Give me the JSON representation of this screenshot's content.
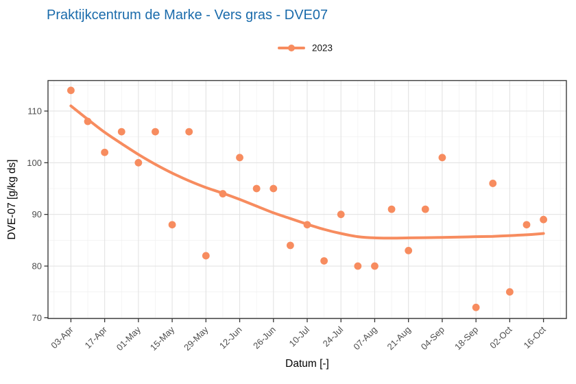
{
  "title": {
    "text": "Praktijkcentrum de Marke - Vers gras - DVE07",
    "color": "#1A6BAB"
  },
  "legend": {
    "label": "2023",
    "color": "#F78C5F"
  },
  "axes": {
    "x_label": "Datum [-]",
    "y_label": "DVE-07 [g/kg ds]",
    "tick_label_color": "#4d4d4d",
    "panel_border_color": "#3b3b3b",
    "major_grid_color": "#e3e3e3",
    "minor_grid_color": "#f1f1f1"
  },
  "chart_data": {
    "type": "scatter",
    "title": "Praktijkcentrum de Marke - Vers gras - DVE07",
    "xlabel": "Datum [-]",
    "ylabel": "DVE-07 [g/kg ds]",
    "legend_entries": [
      "2023"
    ],
    "legend_position": "top-center",
    "grid": true,
    "point_color": "#F78C5F",
    "line_color": "#F78C5F",
    "x_tick_labels": [
      "03-Apr",
      "17-Apr",
      "01-May",
      "15-May",
      "29-May",
      "12-Jun",
      "26-Jun",
      "10-Jul",
      "24-Jul",
      "07-Aug",
      "21-Aug",
      "04-Sep",
      "18-Sep",
      "02-Oct",
      "16-Oct"
    ],
    "x_tick_days": [
      0,
      14,
      28,
      42,
      56,
      70,
      84,
      98,
      112,
      126,
      140,
      154,
      168,
      182,
      196
    ],
    "y_ticks": [
      70,
      80,
      90,
      100,
      110
    ],
    "y_minor_ticks": [
      75,
      85,
      95,
      105,
      115
    ],
    "x_domain_days": [
      -9.5,
      205.5
    ],
    "y_axis_range": [
      69.85,
      115.9
    ],
    "series": [
      {
        "name": "2023",
        "type": "points",
        "color": "#F78C5F",
        "points": [
          {
            "date": "03-Apr",
            "day": 0,
            "value": 114
          },
          {
            "date": "10-Apr",
            "day": 7,
            "value": 108
          },
          {
            "date": "17-Apr",
            "day": 14,
            "value": 102
          },
          {
            "date": "24-Apr",
            "day": 21,
            "value": 106
          },
          {
            "date": "01-May",
            "day": 28,
            "value": 100
          },
          {
            "date": "08-May",
            "day": 35,
            "value": 106
          },
          {
            "date": "15-May",
            "day": 42,
            "value": 88
          },
          {
            "date": "22-May",
            "day": 49,
            "value": 106
          },
          {
            "date": "29-May",
            "day": 56,
            "value": 82
          },
          {
            "date": "05-Jun",
            "day": 63,
            "value": 94
          },
          {
            "date": "12-Jun",
            "day": 70,
            "value": 101
          },
          {
            "date": "19-Jun",
            "day": 77,
            "value": 95
          },
          {
            "date": "26-Jun",
            "day": 84,
            "value": 95
          },
          {
            "date": "03-Jul",
            "day": 91,
            "value": 84
          },
          {
            "date": "10-Jul",
            "day": 98,
            "value": 88
          },
          {
            "date": "17-Jul",
            "day": 105,
            "value": 81
          },
          {
            "date": "24-Jul",
            "day": 112,
            "value": 90
          },
          {
            "date": "31-Jul",
            "day": 119,
            "value": 80
          },
          {
            "date": "07-Aug",
            "day": 126,
            "value": 80
          },
          {
            "date": "14-Aug",
            "day": 133,
            "value": 91
          },
          {
            "date": "21-Aug",
            "day": 140,
            "value": 83
          },
          {
            "date": "28-Aug",
            "day": 147,
            "value": 91
          },
          {
            "date": "04-Sep",
            "day": 154,
            "value": 101
          },
          {
            "date": "18-Sep",
            "day": 168,
            "value": 72
          },
          {
            "date": "25-Sep",
            "day": 175,
            "value": 96
          },
          {
            "date": "02-Oct",
            "day": 182,
            "value": 75
          },
          {
            "date": "09-Oct",
            "day": 189,
            "value": 88
          },
          {
            "date": "16-Oct",
            "day": 196,
            "value": 89
          }
        ]
      },
      {
        "name": "2023 smooth trend",
        "type": "line",
        "color": "#F78C5F",
        "points": [
          {
            "day": 0,
            "value": 111.0
          },
          {
            "day": 7,
            "value": 108.4
          },
          {
            "day": 14,
            "value": 105.9
          },
          {
            "day": 21,
            "value": 103.7
          },
          {
            "day": 28,
            "value": 101.6
          },
          {
            "day": 35,
            "value": 99.7
          },
          {
            "day": 42,
            "value": 98.0
          },
          {
            "day": 49,
            "value": 96.5
          },
          {
            "day": 56,
            "value": 95.2
          },
          {
            "day": 63,
            "value": 94.1
          },
          {
            "day": 70,
            "value": 92.9
          },
          {
            "day": 77,
            "value": 91.6
          },
          {
            "day": 84,
            "value": 90.3
          },
          {
            "day": 91,
            "value": 89.2
          },
          {
            "day": 98,
            "value": 88.1
          },
          {
            "day": 105,
            "value": 87.1
          },
          {
            "day": 112,
            "value": 86.3
          },
          {
            "day": 119,
            "value": 85.7
          },
          {
            "day": 126,
            "value": 85.45
          },
          {
            "day": 133,
            "value": 85.4
          },
          {
            "day": 140,
            "value": 85.45
          },
          {
            "day": 147,
            "value": 85.5
          },
          {
            "day": 154,
            "value": 85.55
          },
          {
            "day": 161,
            "value": 85.6
          },
          {
            "day": 168,
            "value": 85.7
          },
          {
            "day": 175,
            "value": 85.75
          },
          {
            "day": 182,
            "value": 85.9
          },
          {
            "day": 189,
            "value": 86.05
          },
          {
            "day": 196,
            "value": 86.3
          }
        ]
      }
    ]
  }
}
